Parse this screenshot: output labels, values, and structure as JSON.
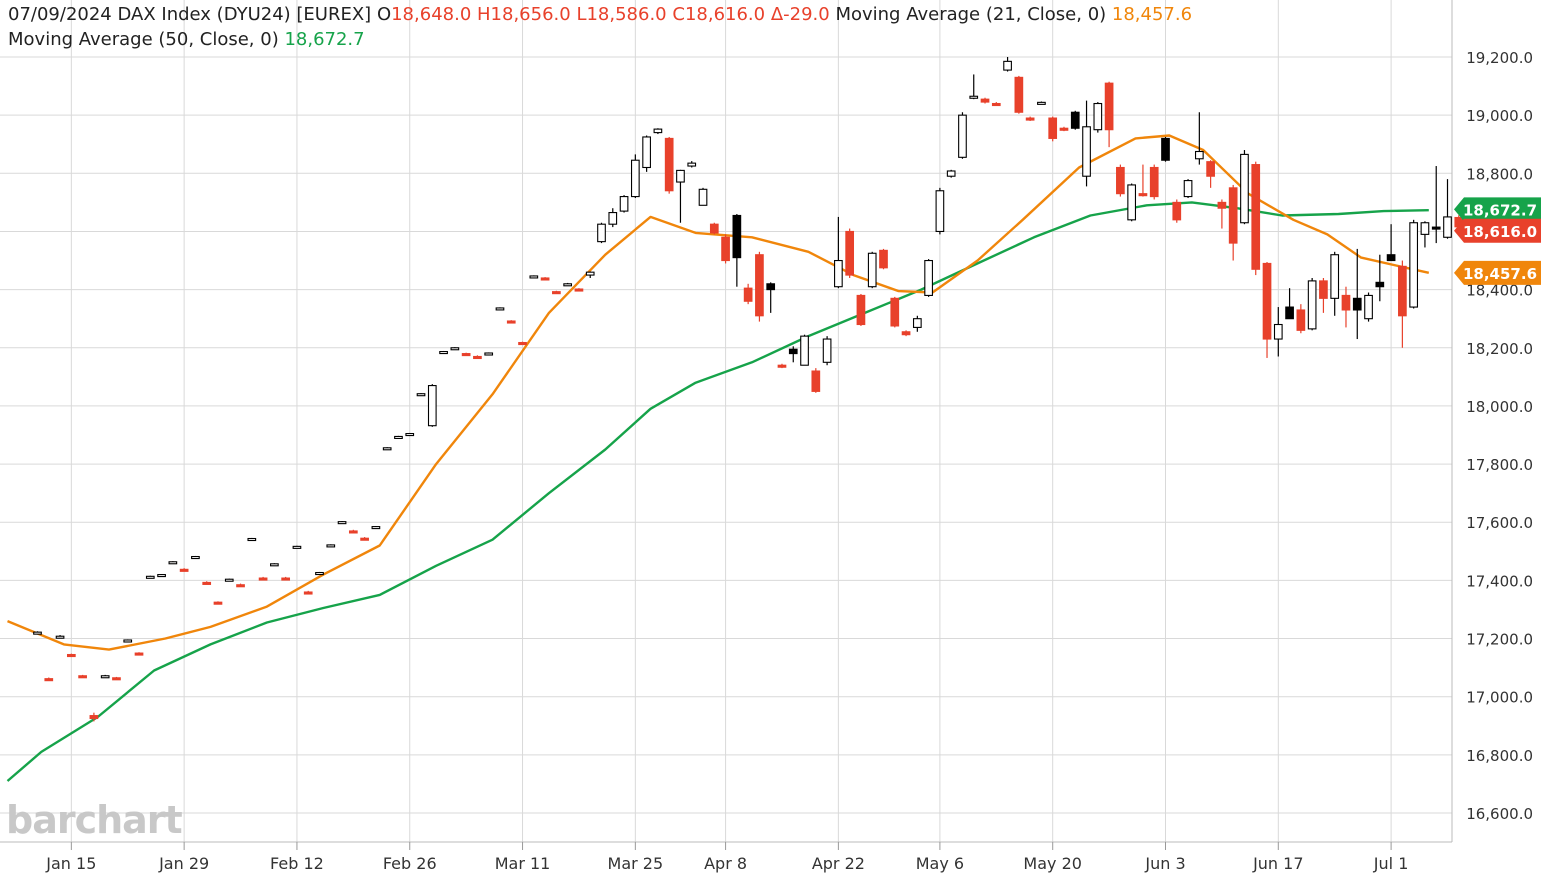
{
  "header": {
    "date": "07/09/2024",
    "symbol": "DAX Index (DYU24) [EUREX]",
    "open_prefix": "O",
    "open": "18,648.0",
    "high_prefix": "H",
    "high": "18,656.0",
    "low_prefix": "L",
    "low": "18,586.0",
    "close_prefix": "C",
    "close": "18,616.0",
    "change": "Δ-29.0",
    "ma21_label": "Moving Average  (21, Close, 0)",
    "ma21_value": "18,457.6",
    "ma50_label": "Moving Average  (50, Close, 0)",
    "ma50_value": "18,672.7"
  },
  "watermark": "barchart",
  "colors": {
    "up": "#ffffff",
    "down_red": "#e8412b",
    "down_black": "#000000",
    "ma21": "#f0860b",
    "ma50": "#16a34a",
    "grid": "#d9d9d9"
  },
  "chart_data": {
    "type": "candlestick",
    "ylim": [
      16550,
      19300
    ],
    "y_ticks": [
      "19,200.0",
      "19,000.0",
      "18,800.0",
      "18,600.0",
      "18,400.0",
      "18,200.0",
      "18,000.0",
      "17,800.0",
      "17,600.0",
      "17,400.0",
      "17,200.0",
      "17,000.0",
      "16,800.0",
      "16,600.0"
    ],
    "y_tick_values": [
      19200,
      19000,
      18800,
      18600,
      18400,
      18200,
      18000,
      17800,
      17600,
      17400,
      17200,
      17000,
      16800,
      16600
    ],
    "x_tick_labels": [
      "Jan 15",
      "Jan 29",
      "Feb 12",
      "Feb 26",
      "Mar 11",
      "Mar 25",
      "Apr 8",
      "Apr 22",
      "May 6",
      "May 20",
      "Jun 3",
      "Jun 17",
      "Jul 1"
    ],
    "x_tick_index": [
      3,
      13,
      23,
      33,
      43,
      53,
      61,
      71,
      80,
      90,
      100,
      110,
      120
    ],
    "candles": [
      {
        "o": 17220,
        "h": 17225,
        "l": 17215,
        "c": 17222,
        "k": "b"
      },
      {
        "o": 17062,
        "h": 17066,
        "l": 17058,
        "c": 17060,
        "k": "r"
      },
      {
        "o": 17208,
        "h": 17212,
        "l": 17204,
        "c": 17206,
        "k": "b"
      },
      {
        "o": 17145,
        "h": 17148,
        "l": 17140,
        "c": 17142,
        "k": "r"
      },
      {
        "o": 17072,
        "h": 17075,
        "l": 17068,
        "c": 17070,
        "k": "r"
      },
      {
        "o": 16935,
        "h": 16945,
        "l": 16915,
        "c": 16925,
        "k": "r"
      },
      {
        "o": 17072,
        "h": 17075,
        "l": 17068,
        "c": 17070,
        "k": "b"
      },
      {
        "o": 17065,
        "h": 17068,
        "l": 17060,
        "c": 17062,
        "k": "r"
      },
      {
        "o": 17193,
        "h": 17197,
        "l": 17188,
        "c": 17195,
        "k": "b"
      },
      {
        "o": 17150,
        "h": 17153,
        "l": 17146,
        "c": 17148,
        "k": "r"
      },
      {
        "o": 17412,
        "h": 17416,
        "l": 17408,
        "c": 17414,
        "k": "b"
      },
      {
        "o": 17418,
        "h": 17422,
        "l": 17414,
        "c": 17420,
        "k": "b"
      },
      {
        "o": 17462,
        "h": 17466,
        "l": 17458,
        "c": 17464,
        "k": "b"
      },
      {
        "o": 17438,
        "h": 17442,
        "l": 17434,
        "c": 17436,
        "k": "r"
      },
      {
        "o": 17480,
        "h": 17484,
        "l": 17476,
        "c": 17482,
        "k": "b"
      },
      {
        "o": 17393,
        "h": 17397,
        "l": 17388,
        "c": 17390,
        "k": "r"
      },
      {
        "o": 17325,
        "h": 17328,
        "l": 17320,
        "c": 17322,
        "k": "r"
      },
      {
        "o": 17402,
        "h": 17406,
        "l": 17398,
        "c": 17404,
        "k": "b"
      },
      {
        "o": 17385,
        "h": 17389,
        "l": 17380,
        "c": 17383,
        "k": "r"
      },
      {
        "o": 17542,
        "h": 17546,
        "l": 17538,
        "c": 17544,
        "k": "b"
      },
      {
        "o": 17408,
        "h": 17412,
        "l": 17404,
        "c": 17406,
        "k": "r"
      },
      {
        "o": 17455,
        "h": 17459,
        "l": 17450,
        "c": 17457,
        "k": "b"
      },
      {
        "o": 17408,
        "h": 17412,
        "l": 17404,
        "c": 17406,
        "k": "r"
      },
      {
        "o": 17515,
        "h": 17519,
        "l": 17510,
        "c": 17517,
        "k": "b"
      },
      {
        "o": 17360,
        "h": 17364,
        "l": 17356,
        "c": 17358,
        "k": "r"
      },
      {
        "o": 17425,
        "h": 17429,
        "l": 17420,
        "c": 17427,
        "k": "b"
      },
      {
        "o": 17520,
        "h": 17524,
        "l": 17515,
        "c": 17522,
        "k": "b"
      },
      {
        "o": 17600,
        "h": 17604,
        "l": 17596,
        "c": 17602,
        "k": "b"
      },
      {
        "o": 17570,
        "h": 17574,
        "l": 17565,
        "c": 17568,
        "k": "r"
      },
      {
        "o": 17545,
        "h": 17549,
        "l": 17540,
        "c": 17543,
        "k": "r"
      },
      {
        "o": 17583,
        "h": 17587,
        "l": 17578,
        "c": 17585,
        "k": "b"
      },
      {
        "o": 17854,
        "h": 17858,
        "l": 17850,
        "c": 17856,
        "k": "b"
      },
      {
        "o": 17893,
        "h": 17897,
        "l": 17888,
        "c": 17895,
        "k": "b"
      },
      {
        "o": 17903,
        "h": 17907,
        "l": 17898,
        "c": 17905,
        "k": "b"
      },
      {
        "o": 18040,
        "h": 18044,
        "l": 18035,
        "c": 18042,
        "k": "b"
      },
      {
        "o": 17932,
        "h": 18075,
        "l": 17928,
        "c": 18070,
        "k": "b"
      },
      {
        "o": 18185,
        "h": 18189,
        "l": 18180,
        "c": 18187,
        "k": "b"
      },
      {
        "o": 18198,
        "h": 18202,
        "l": 18194,
        "c": 18200,
        "k": "b"
      },
      {
        "o": 18180,
        "h": 18183,
        "l": 18175,
        "c": 18178,
        "k": "r"
      },
      {
        "o": 18170,
        "h": 18174,
        "l": 18166,
        "c": 18168,
        "k": "r"
      },
      {
        "o": 18180,
        "h": 18184,
        "l": 18176,
        "c": 18182,
        "k": "b"
      },
      {
        "o": 18335,
        "h": 18339,
        "l": 18330,
        "c": 18337,
        "k": "b"
      },
      {
        "o": 18292,
        "h": 18295,
        "l": 18288,
        "c": 18290,
        "k": "r"
      },
      {
        "o": 18218,
        "h": 18221,
        "l": 18213,
        "c": 18215,
        "k": "r"
      },
      {
        "o": 18445,
        "h": 18449,
        "l": 18440,
        "c": 18447,
        "k": "b"
      },
      {
        "o": 18440,
        "h": 18443,
        "l": 18435,
        "c": 18438,
        "k": "r"
      },
      {
        "o": 18393,
        "h": 18396,
        "l": 18388,
        "c": 18390,
        "k": "r"
      },
      {
        "o": 18420,
        "h": 18423,
        "l": 18415,
        "c": 18418,
        "k": "b"
      },
      {
        "o": 18402,
        "h": 18405,
        "l": 18398,
        "c": 18400,
        "k": "r"
      },
      {
        "o": 18450,
        "h": 18462,
        "l": 18440,
        "c": 18460,
        "k": "b"
      },
      {
        "o": 18565,
        "h": 18630,
        "l": 18560,
        "c": 18625,
        "k": "b"
      },
      {
        "o": 18625,
        "h": 18680,
        "l": 18615,
        "c": 18665,
        "k": "b"
      },
      {
        "o": 18670,
        "h": 18725,
        "l": 18665,
        "c": 18720,
        "k": "b"
      },
      {
        "o": 18720,
        "h": 18865,
        "l": 18715,
        "c": 18845,
        "k": "b"
      },
      {
        "o": 18820,
        "h": 18930,
        "l": 18805,
        "c": 18925,
        "k": "b"
      },
      {
        "o": 18940,
        "h": 18955,
        "l": 18935,
        "c": 18952,
        "k": "b"
      },
      {
        "o": 18920,
        "h": 18925,
        "l": 18730,
        "c": 18740,
        "k": "r"
      },
      {
        "o": 18770,
        "h": 18812,
        "l": 18630,
        "c": 18810,
        "k": "b"
      },
      {
        "o": 18825,
        "h": 18842,
        "l": 18820,
        "c": 18835,
        "k": "b"
      },
      {
        "o": 18690,
        "h": 18750,
        "l": 18690,
        "c": 18745,
        "k": "b"
      },
      {
        "o": 18625,
        "h": 18630,
        "l": 18590,
        "c": 18595,
        "k": "r"
      },
      {
        "o": 18580,
        "h": 18590,
        "l": 18490,
        "c": 18500,
        "k": "r"
      },
      {
        "o": 18655,
        "h": 18660,
        "l": 18410,
        "c": 18510,
        "k": "k"
      },
      {
        "o": 18405,
        "h": 18420,
        "l": 18350,
        "c": 18360,
        "k": "r"
      },
      {
        "o": 18520,
        "h": 18530,
        "l": 18290,
        "c": 18310,
        "k": "r"
      },
      {
        "o": 18420,
        "h": 18425,
        "l": 18320,
        "c": 18400,
        "k": "k"
      },
      {
        "o": 18140,
        "h": 18145,
        "l": 18130,
        "c": 18135,
        "k": "r"
      },
      {
        "o": 18195,
        "h": 18205,
        "l": 18150,
        "c": 18180,
        "k": "k"
      },
      {
        "o": 18140,
        "h": 18245,
        "l": 18140,
        "c": 18240,
        "k": "b"
      },
      {
        "o": 18120,
        "h": 18130,
        "l": 18045,
        "c": 18050,
        "k": "r"
      },
      {
        "o": 18150,
        "h": 18240,
        "l": 18140,
        "c": 18230,
        "k": "b"
      },
      {
        "o": 18410,
        "h": 18650,
        "l": 18405,
        "c": 18500,
        "k": "b"
      },
      {
        "o": 18600,
        "h": 18610,
        "l": 18440,
        "c": 18450,
        "k": "r"
      },
      {
        "o": 18380,
        "h": 18385,
        "l": 18275,
        "c": 18280,
        "k": "r"
      },
      {
        "o": 18410,
        "h": 18530,
        "l": 18405,
        "c": 18525,
        "k": "b"
      },
      {
        "o": 18535,
        "h": 18540,
        "l": 18470,
        "c": 18475,
        "k": "r"
      },
      {
        "o": 18370,
        "h": 18375,
        "l": 18270,
        "c": 18275,
        "k": "r"
      },
      {
        "o": 18255,
        "h": 18260,
        "l": 18240,
        "c": 18245,
        "k": "r"
      },
      {
        "o": 18270,
        "h": 18310,
        "l": 18255,
        "c": 18300,
        "k": "b"
      },
      {
        "o": 18380,
        "h": 18505,
        "l": 18375,
        "c": 18500,
        "k": "b"
      },
      {
        "o": 18600,
        "h": 18750,
        "l": 18590,
        "c": 18740,
        "k": "b"
      },
      {
        "o": 18790,
        "h": 18812,
        "l": 18785,
        "c": 18808,
        "k": "b"
      },
      {
        "o": 18855,
        "h": 19010,
        "l": 18850,
        "c": 19000,
        "k": "b"
      },
      {
        "o": 19060,
        "h": 19140,
        "l": 19055,
        "c": 19065,
        "k": "b"
      },
      {
        "o": 19055,
        "h": 19060,
        "l": 19040,
        "c": 19045,
        "k": "r"
      },
      {
        "o": 19040,
        "h": 19045,
        "l": 19032,
        "c": 19036,
        "k": "r"
      },
      {
        "o": 19155,
        "h": 19200,
        "l": 19150,
        "c": 19185,
        "k": "b"
      },
      {
        "o": 19130,
        "h": 19135,
        "l": 19005,
        "c": 19010,
        "k": "r"
      },
      {
        "o": 18990,
        "h": 18995,
        "l": 18980,
        "c": 18985,
        "k": "r"
      },
      {
        "o": 19042,
        "h": 19047,
        "l": 19038,
        "c": 19044,
        "k": "b"
      },
      {
        "o": 18990,
        "h": 18995,
        "l": 18910,
        "c": 18920,
        "k": "r"
      },
      {
        "o": 18955,
        "h": 18960,
        "l": 18945,
        "c": 18950,
        "k": "r"
      },
      {
        "o": 19010,
        "h": 19015,
        "l": 18950,
        "c": 18955,
        "k": "k"
      },
      {
        "o": 18960,
        "h": 19050,
        "l": 18755,
        "c": 18790,
        "k": "b"
      },
      {
        "o": 18950,
        "h": 19045,
        "l": 18940,
        "c": 19040,
        "k": "b"
      },
      {
        "o": 19110,
        "h": 19115,
        "l": 18890,
        "c": 18950,
        "k": "r"
      },
      {
        "o": 18820,
        "h": 18830,
        "l": 18720,
        "c": 18730,
        "k": "r"
      },
      {
        "o": 18640,
        "h": 18765,
        "l": 18635,
        "c": 18760,
        "k": "b"
      },
      {
        "o": 18725,
        "h": 18830,
        "l": 18720,
        "c": 18730,
        "k": "r"
      },
      {
        "o": 18820,
        "h": 18830,
        "l": 18710,
        "c": 18720,
        "k": "r"
      },
      {
        "o": 18920,
        "h": 18925,
        "l": 18840,
        "c": 18845,
        "k": "k"
      },
      {
        "o": 18700,
        "h": 18710,
        "l": 18630,
        "c": 18640,
        "k": "r"
      },
      {
        "o": 18720,
        "h": 18780,
        "l": 18715,
        "c": 18775,
        "k": "b"
      },
      {
        "o": 18850,
        "h": 19010,
        "l": 18830,
        "c": 18875,
        "k": "b"
      },
      {
        "o": 18840,
        "h": 18845,
        "l": 18750,
        "c": 18790,
        "k": "r"
      },
      {
        "o": 18700,
        "h": 18710,
        "l": 18610,
        "c": 18680,
        "k": "r"
      },
      {
        "o": 18750,
        "h": 18760,
        "l": 18500,
        "c": 18560,
        "k": "r"
      },
      {
        "o": 18630,
        "h": 18880,
        "l": 18625,
        "c": 18865,
        "k": "b"
      },
      {
        "o": 18830,
        "h": 18840,
        "l": 18450,
        "c": 18470,
        "k": "r"
      },
      {
        "o": 18490,
        "h": 18495,
        "l": 18165,
        "c": 18230,
        "k": "r"
      },
      {
        "o": 18230,
        "h": 18340,
        "l": 18170,
        "c": 18280,
        "k": "b"
      },
      {
        "o": 18340,
        "h": 18405,
        "l": 18300,
        "c": 18300,
        "k": "k"
      },
      {
        "o": 18330,
        "h": 18350,
        "l": 18250,
        "c": 18260,
        "k": "r"
      },
      {
        "o": 18265,
        "h": 18440,
        "l": 18260,
        "c": 18430,
        "k": "b"
      },
      {
        "o": 18430,
        "h": 18440,
        "l": 18320,
        "c": 18370,
        "k": "r"
      },
      {
        "o": 18370,
        "h": 18530,
        "l": 18310,
        "c": 18520,
        "k": "b"
      },
      {
        "o": 18380,
        "h": 18410,
        "l": 18270,
        "c": 18330,
        "k": "r"
      },
      {
        "o": 18370,
        "h": 18540,
        "l": 18230,
        "c": 18330,
        "k": "k"
      },
      {
        "o": 18300,
        "h": 18390,
        "l": 18290,
        "c": 18380,
        "k": "b"
      },
      {
        "o": 18425,
        "h": 18520,
        "l": 18360,
        "c": 18410,
        "k": "k"
      },
      {
        "o": 18520,
        "h": 18625,
        "l": 18505,
        "c": 18500,
        "k": "k"
      },
      {
        "o": 18480,
        "h": 18500,
        "l": 18200,
        "c": 18310,
        "k": "r"
      },
      {
        "o": 18340,
        "h": 18640,
        "l": 18335,
        "c": 18630,
        "k": "b"
      },
      {
        "o": 18590,
        "h": 18635,
        "l": 18545,
        "c": 18630,
        "k": "b"
      },
      {
        "o": 18610,
        "h": 18825,
        "l": 18560,
        "c": 18615,
        "k": "k"
      },
      {
        "o": 18580,
        "h": 18780,
        "l": 18575,
        "c": 18650,
        "k": "b"
      },
      {
        "o": 18648,
        "h": 18656,
        "l": 18586,
        "c": 18616,
        "k": "r"
      }
    ],
    "ma21_anchors": [
      [
        0,
        17260
      ],
      [
        5,
        17180
      ],
      [
        9,
        17162
      ],
      [
        14,
        17200
      ],
      [
        18,
        17240
      ],
      [
        23,
        17310
      ],
      [
        28,
        17420
      ],
      [
        33,
        17520
      ],
      [
        38,
        17800
      ],
      [
        43,
        18040
      ],
      [
        48,
        18320
      ],
      [
        53,
        18520
      ],
      [
        57,
        18650
      ],
      [
        61,
        18595
      ],
      [
        66,
        18580
      ],
      [
        71,
        18530
      ],
      [
        75,
        18450
      ],
      [
        79,
        18395
      ],
      [
        82,
        18390
      ],
      [
        86,
        18500
      ],
      [
        90,
        18640
      ],
      [
        95,
        18820
      ],
      [
        100,
        18920
      ],
      [
        103,
        18930
      ],
      [
        106,
        18880
      ],
      [
        110,
        18730
      ],
      [
        114,
        18640
      ],
      [
        117,
        18590
      ],
      [
        120,
        18510
      ],
      [
        124,
        18475
      ],
      [
        126,
        18458
      ]
    ],
    "ma50_anchors": [
      [
        0,
        16710
      ],
      [
        3,
        16810
      ],
      [
        8,
        16930
      ],
      [
        13,
        17090
      ],
      [
        18,
        17180
      ],
      [
        23,
        17255
      ],
      [
        28,
        17305
      ],
      [
        33,
        17350
      ],
      [
        38,
        17450
      ],
      [
        43,
        17540
      ],
      [
        48,
        17700
      ],
      [
        53,
        17850
      ],
      [
        57,
        17990
      ],
      [
        61,
        18080
      ],
      [
        66,
        18150
      ],
      [
        71,
        18240
      ],
      [
        76,
        18320
      ],
      [
        81,
        18400
      ],
      [
        86,
        18490
      ],
      [
        91,
        18580
      ],
      [
        96,
        18655
      ],
      [
        101,
        18690
      ],
      [
        105,
        18700
      ],
      [
        109,
        18680
      ],
      [
        113,
        18655
      ],
      [
        118,
        18660
      ],
      [
        122,
        18670
      ],
      [
        126,
        18673
      ]
    ],
    "price_labels": [
      {
        "text": "18,672.7",
        "value": 18672.7,
        "color": "#16a34a"
      },
      {
        "text": "18,616.0",
        "value": 18616.0,
        "color": "#e8412b"
      },
      {
        "text": "18,457.6",
        "value": 18457.6,
        "color": "#f0860b"
      }
    ]
  }
}
